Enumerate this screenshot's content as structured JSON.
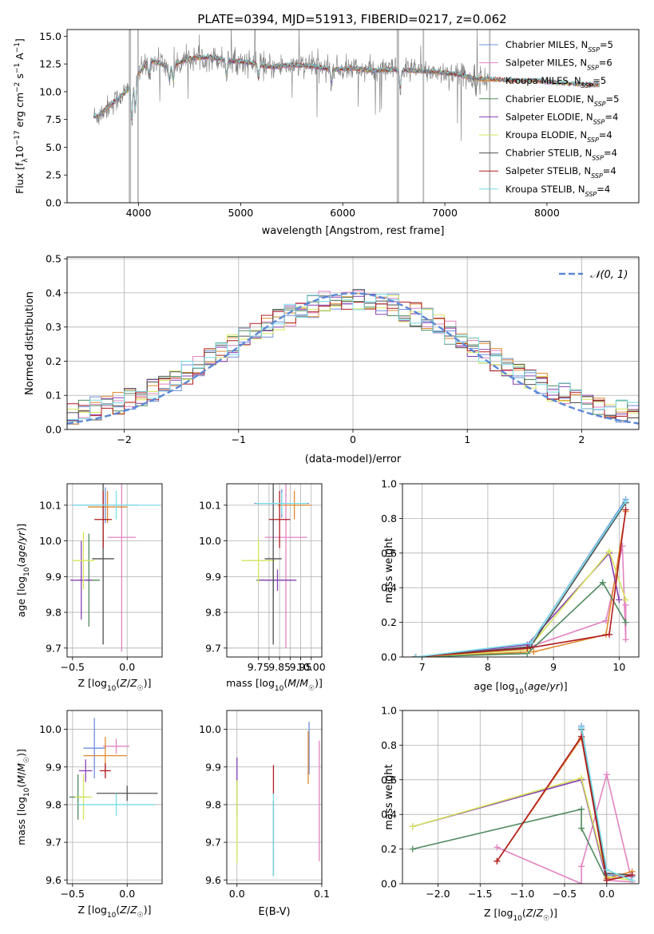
{
  "figure": {
    "title": "PLATE=0394, MJD=51913, FIBERID=0217, z=0.062"
  },
  "model_colors": {
    "Chabrier MILES": "#6f8fdc",
    "Salpeter MILES": "#e283c0",
    "Kroupa MILES": "#e08a2e",
    "Chabrier ELODIE": "#4f8a5f",
    "Salpeter ELODIE": "#8a3fb4",
    "Kroupa ELODIE": "#d6e65a",
    "Chabrier STELIB": "#505050",
    "Salpeter STELIB": "#b01c20",
    "Kroupa STELIB": "#78dce8",
    "data_spectrum": "#7a7a7a",
    "normal_curve": "#5b88d6"
  },
  "chart_data": [
    {
      "id": "spectrum",
      "type": "line",
      "xlabel": "wavelength [Angstrom, rest frame]",
      "ylabel": "Flux [f_λ 10^-17 erg cm^-2 s^-1 A^-1]",
      "xlim": [
        3300,
        8900
      ],
      "ylim": [
        0,
        15.6
      ],
      "xticks": [
        4000,
        5000,
        6000,
        7000,
        8000
      ],
      "yticks": [
        0.0,
        2.5,
        5.0,
        7.5,
        10.0,
        12.5,
        15.0
      ],
      "grid": false,
      "legend_position": "top-right",
      "legend": [
        {
          "label": "Chabrier MILES, N",
          "sub": "SSP",
          "eq": "=5"
        },
        {
          "label": "Salpeter MILES, N",
          "sub": "SSP",
          "eq": "=6"
        },
        {
          "label": "Kroupa MILES, N",
          "sub": "SSP",
          "eq": "=5"
        },
        {
          "label": "Chabrier ELODIE, N",
          "sub": "SSP",
          "eq": "=5"
        },
        {
          "label": "Salpeter ELODIE, N",
          "sub": "SSP",
          "eq": "=4"
        },
        {
          "label": "Kroupa ELODIE, N",
          "sub": "SSP",
          "eq": "=4"
        },
        {
          "label": "Chabrier STELIB, N",
          "sub": "SSP",
          "eq": "=4"
        },
        {
          "label": "Salpeter STELIB, N",
          "sub": "SSP",
          "eq": "=4"
        },
        {
          "label": "Kroupa STELIB, N",
          "sub": "SSP",
          "eq": "=4"
        }
      ],
      "continuum": [
        [
          3600,
          7.8
        ],
        [
          3700,
          8.6
        ],
        [
          3800,
          9.4
        ],
        [
          3900,
          10.2
        ],
        [
          4000,
          11.6
        ],
        [
          4100,
          12.8
        ],
        [
          4200,
          12.6
        ],
        [
          4300,
          12.2
        ],
        [
          4400,
          12.6
        ],
        [
          4500,
          13.0
        ],
        [
          4700,
          13.1
        ],
        [
          4900,
          12.8
        ],
        [
          5100,
          12.6
        ],
        [
          5300,
          12.2
        ],
        [
          5500,
          12.4
        ],
        [
          5700,
          12.3
        ],
        [
          5900,
          12.0
        ],
        [
          6100,
          12.1
        ],
        [
          6300,
          11.9
        ],
        [
          6500,
          12.0
        ],
        [
          6700,
          11.9
        ],
        [
          6900,
          11.8
        ],
        [
          7100,
          11.6
        ],
        [
          7300,
          11.2
        ],
        [
          7500,
          11.1
        ],
        [
          7700,
          11.0
        ],
        [
          7900,
          11.0
        ],
        [
          8100,
          10.8
        ],
        [
          8300,
          10.7
        ],
        [
          8500,
          10.6
        ]
      ],
      "model_range": [
        3560,
        8520
      ],
      "data_range": [
        3560,
        7450
      ]
    },
    {
      "id": "residuals",
      "type": "histogram",
      "xlabel": "(data-model)/error",
      "ylabel": "Normed distribution",
      "xlim": [
        -2.5,
        2.5
      ],
      "ylim": [
        0,
        0.505
      ],
      "xticks": [
        -2,
        -1,
        0,
        1,
        2
      ],
      "yticks": [
        0.0,
        0.1,
        0.2,
        0.3,
        0.4,
        0.5
      ],
      "grid": true,
      "legend_position": "top-right",
      "legend": [
        {
          "label": "𝒩(0, 1)"
        }
      ],
      "normal": {
        "mu": 0,
        "sigma": 1
      },
      "bin_width": 0.1,
      "bin_range": [
        -2.5,
        2.5
      ]
    },
    {
      "id": "age_vs_Z",
      "type": "errorbar",
      "xlabel": "Z [log10(Z/Z☉)]",
      "ylabel": "age [log10(age/yr)]",
      "xlim": [
        -0.55,
        0.32
      ],
      "ylim": [
        9.675,
        10.16
      ],
      "xticks": [
        -0.5,
        0.0
      ],
      "yticks": [
        9.7,
        9.8,
        9.9,
        10.0,
        10.1
      ],
      "grid": true,
      "points": [
        {
          "model": "Chabrier MILES",
          "x": -0.2,
          "xerr": 0.3,
          "y": 10.1,
          "yerr": 0.05
        },
        {
          "model": "Salpeter MILES",
          "x": -0.05,
          "xerr": 0.13,
          "y": 10.01,
          "yerr": 0.32
        },
        {
          "model": "Kroupa MILES",
          "x": -0.18,
          "xerr": 0.18,
          "y": 10.095,
          "yerr": 0.045
        },
        {
          "model": "Chabrier ELODIE",
          "x": -0.35,
          "xerr": 0.1,
          "y": 9.89,
          "yerr": 0.13
        },
        {
          "model": "Salpeter ELODIE",
          "x": -0.42,
          "xerr": 0.1,
          "y": 9.89,
          "yerr": 0.11
        },
        {
          "model": "Kroupa ELODIE",
          "x": -0.4,
          "xerr": 0.1,
          "y": 9.945,
          "yerr": 0.08
        },
        {
          "model": "Chabrier STELIB",
          "x": -0.22,
          "xerr": 0.1,
          "y": 9.95,
          "yerr": 0.24
        },
        {
          "model": "Salpeter STELIB",
          "x": -0.22,
          "xerr": 0.08,
          "y": 10.06,
          "yerr": 0.08
        },
        {
          "model": "Kroupa STELIB",
          "x": -0.1,
          "xerr": 0.4,
          "y": 10.1,
          "yerr": 0.04
        }
      ]
    },
    {
      "id": "age_vs_mass",
      "type": "errorbar",
      "xlabel": "mass [log10(M/M☉)]",
      "ylabel": "",
      "xlim": [
        9.6,
        10.05
      ],
      "ylim": [
        9.675,
        10.16
      ],
      "xticks": [
        9.75,
        9.8,
        9.85,
        9.9,
        9.95,
        10.0
      ],
      "xticklabels": [
        "9.75",
        "",
        "9.85",
        "",
        "9.95",
        "10.00"
      ],
      "yticks": [
        9.7,
        9.8,
        9.9,
        10.0,
        10.1
      ],
      "grid": true,
      "points": [
        {
          "model": "Chabrier MILES",
          "x": 9.86,
          "xerr": 0.13,
          "y": 10.105,
          "yerr": 0.04
        },
        {
          "model": "Salpeter MILES",
          "x": 9.88,
          "xerr": 0.1,
          "y": 10.01,
          "yerr": 0.31
        },
        {
          "model": "Kroupa MILES",
          "x": 9.92,
          "xerr": 0.08,
          "y": 10.1,
          "yerr": 0.04
        },
        {
          "model": "Chabrier ELODIE",
          "x": 9.82,
          "xerr": 0.08,
          "y": 9.89,
          "yerr": 0.05
        },
        {
          "model": "Salpeter ELODIE",
          "x": 9.84,
          "xerr": 0.09,
          "y": 9.89,
          "yerr": 0.03
        },
        {
          "model": "Kroupa ELODIE",
          "x": 9.75,
          "xerr": 0.08,
          "y": 9.945,
          "yerr": 0.06
        },
        {
          "model": "Chabrier STELIB",
          "x": 9.82,
          "xerr": 0.04,
          "y": 9.95,
          "yerr": 0.24
        },
        {
          "model": "Salpeter STELIB",
          "x": 9.85,
          "xerr": 0.05,
          "y": 10.06,
          "yerr": 0.08
        },
        {
          "model": "Kroupa STELIB",
          "x": 9.86,
          "xerr": 0.12,
          "y": 10.105,
          "yerr": 0.03
        }
      ]
    },
    {
      "id": "weight_vs_age",
      "type": "line",
      "xlabel": "age [log10(age/yr)]",
      "ylabel": "mass weight",
      "xlim": [
        6.7,
        10.3
      ],
      "ylim": [
        0,
        1.0
      ],
      "xticks": [
        7,
        8,
        9,
        10
      ],
      "yticks": [
        0.0,
        0.2,
        0.4,
        0.6,
        0.8,
        1.0
      ],
      "grid": true,
      "series": [
        {
          "model": "Chabrier MILES",
          "x": [
            6.9,
            8.6,
            10.1
          ],
          "y": [
            0.0,
            0.05,
            0.91
          ]
        },
        {
          "model": "Salpeter MILES",
          "x": [
            6.9,
            8.5,
            9.8,
            10.05,
            10.1,
            10.1
          ],
          "y": [
            0.0,
            0.04,
            0.21,
            0.64,
            0.1,
            0.3
          ]
        },
        {
          "model": "Kroupa MILES",
          "x": [
            6.9,
            8.7,
            9.8,
            10.1
          ],
          "y": [
            0.0,
            0.03,
            0.13,
            0.84
          ]
        },
        {
          "model": "Chabrier ELODIE",
          "x": [
            6.9,
            8.6,
            9.75,
            10.1
          ],
          "y": [
            0.0,
            0.02,
            0.43,
            0.2
          ]
        },
        {
          "model": "Salpeter ELODIE",
          "x": [
            6.9,
            8.6,
            9.85,
            10.0
          ],
          "y": [
            0.0,
            0.07,
            0.6,
            0.33
          ]
        },
        {
          "model": "Kroupa ELODIE",
          "x": [
            6.9,
            8.6,
            9.85,
            10.1
          ],
          "y": [
            0.0,
            0.04,
            0.61,
            0.33
          ]
        },
        {
          "model": "Chabrier STELIB",
          "x": [
            6.9,
            8.65,
            10.1
          ],
          "y": [
            0.0,
            0.06,
            0.89
          ]
        },
        {
          "model": "Salpeter STELIB",
          "x": [
            6.9,
            8.6,
            9.85,
            10.1
          ],
          "y": [
            0.0,
            0.05,
            0.13,
            0.85
          ]
        },
        {
          "model": "Kroupa STELIB",
          "x": [
            6.9,
            8.65,
            10.1
          ],
          "y": [
            0.0,
            0.08,
            0.9
          ]
        }
      ]
    },
    {
      "id": "mass_vs_Z",
      "type": "errorbar",
      "xlabel": "Z [log10(Z/Z☉)]",
      "ylabel": "mass [log10(M/M☉)]",
      "xlim": [
        -0.55,
        0.32
      ],
      "ylim": [
        9.59,
        10.05
      ],
      "xticks": [
        -0.5,
        0.0
      ],
      "yticks": [
        9.6,
        9.7,
        9.8,
        9.9,
        10.0
      ],
      "grid": true,
      "points": [
        {
          "model": "Chabrier MILES",
          "x": -0.3,
          "xerr": 0.1,
          "y": 9.95,
          "yerr": 0.08
        },
        {
          "model": "Salpeter MILES",
          "x": -0.1,
          "xerr": 0.12,
          "y": 9.955,
          "yerr": 0.02
        },
        {
          "model": "Kroupa MILES",
          "x": -0.2,
          "xerr": 0.2,
          "y": 9.93,
          "yerr": 0.05
        },
        {
          "model": "Chabrier ELODIE",
          "x": -0.45,
          "xerr": 0.08,
          "y": 9.82,
          "yerr": 0.06
        },
        {
          "model": "Salpeter ELODIE",
          "x": -0.38,
          "xerr": 0.06,
          "y": 9.89,
          "yerr": 0.03
        },
        {
          "model": "Kroupa ELODIE",
          "x": -0.4,
          "xerr": 0.08,
          "y": 9.82,
          "yerr": 0.06
        },
        {
          "model": "Chabrier STELIB",
          "x": 0.0,
          "xerr": 0.28,
          "y": 9.83,
          "yerr": 0.02
        },
        {
          "model": "Salpeter STELIB",
          "x": -0.2,
          "xerr": 0.05,
          "y": 9.89,
          "yerr": 0.02
        },
        {
          "model": "Kroupa STELIB",
          "x": -0.1,
          "xerr": 0.35,
          "y": 9.8,
          "yerr": 0.03
        }
      ]
    },
    {
      "id": "mass_vs_EBV",
      "type": "errorbar",
      "xlabel": "E(B-V)",
      "ylabel": "",
      "xlim": [
        -0.012,
        0.1
      ],
      "ylim": [
        9.59,
        10.05
      ],
      "xticks": [
        0.0,
        0.1
      ],
      "yticks": [
        9.6,
        9.7,
        9.8,
        9.9,
        10.0
      ],
      "grid": true,
      "points": [
        {
          "model": "Chabrier MILES",
          "x": 0.085,
          "xerr": 0.0,
          "y": 9.95,
          "yerr": 0.07
        },
        {
          "model": "Salpeter MILES",
          "x": 0.097,
          "xerr": 0.0,
          "y": 9.81,
          "yerr": 0.16
        },
        {
          "model": "Kroupa MILES",
          "x": 0.084,
          "xerr": 0.0,
          "y": 9.925,
          "yerr": 0.07
        },
        {
          "model": "Chabrier ELODIE",
          "x": 0.0,
          "xerr": 0.0,
          "y": 9.82,
          "yerr": 0.05
        },
        {
          "model": "Salpeter ELODIE",
          "x": 0.0,
          "xerr": 0.0,
          "y": 9.895,
          "yerr": 0.03
        },
        {
          "model": "Kroupa ELODIE",
          "x": 0.0,
          "xerr": 0.0,
          "y": 9.755,
          "yerr": 0.11
        },
        {
          "model": "Chabrier STELIB",
          "x": 0.043,
          "xerr": 0.0,
          "y": 9.71,
          "yerr": 0.1
        },
        {
          "model": "Salpeter STELIB",
          "x": 0.043,
          "xerr": 0.0,
          "y": 9.865,
          "yerr": 0.04
        },
        {
          "model": "Kroupa STELIB",
          "x": 0.043,
          "xerr": 0.0,
          "y": 9.72,
          "yerr": 0.11
        }
      ]
    },
    {
      "id": "weight_vs_Z",
      "type": "line",
      "xlabel": "Z [log10(Z/Z☉)]",
      "ylabel": "mass weight",
      "xlim": [
        -2.42,
        0.38
      ],
      "ylim": [
        0,
        1.0
      ],
      "xticks": [
        -2.0,
        -1.5,
        -1.0,
        -0.5,
        0.0
      ],
      "yticks": [
        0.0,
        0.2,
        0.4,
        0.6,
        0.8,
        1.0
      ],
      "grid": true,
      "series": [
        {
          "model": "Chabrier MILES",
          "x": [
            -0.3,
            0.0,
            0.3
          ],
          "y": [
            0.91,
            0.05,
            0.04
          ]
        },
        {
          "model": "Salpeter MILES",
          "x": [
            -1.3,
            -0.3,
            -0.3,
            0.0,
            0.3,
            0.0
          ],
          "y": [
            0.21,
            0.0,
            0.1,
            0.63,
            0.01,
            0.02
          ]
        },
        {
          "model": "Kroupa MILES",
          "x": [
            -1.3,
            -0.3,
            0.0,
            0.3
          ],
          "y": [
            0.13,
            0.84,
            0.03,
            0.07
          ]
        },
        {
          "model": "Chabrier ELODIE",
          "x": [
            -2.3,
            -0.3,
            -0.3,
            0.0
          ],
          "y": [
            0.2,
            0.43,
            0.32,
            0.02
          ]
        },
        {
          "model": "Salpeter ELODIE",
          "x": [
            -2.3,
            -0.3,
            0.0,
            0.3
          ],
          "y": [
            0.33,
            0.6,
            0.02,
            0.05
          ]
        },
        {
          "model": "Kroupa ELODIE",
          "x": [
            -2.3,
            -0.3,
            0.0,
            0.3
          ],
          "y": [
            0.33,
            0.61,
            0.04,
            0.02
          ]
        },
        {
          "model": "Chabrier STELIB",
          "x": [
            -0.3,
            0.0,
            0.3
          ],
          "y": [
            0.89,
            0.06,
            0.05
          ]
        },
        {
          "model": "Salpeter STELIB",
          "x": [
            -1.3,
            -0.3,
            0.0,
            0.3
          ],
          "y": [
            0.13,
            0.85,
            0.02,
            0.05
          ]
        },
        {
          "model": "Kroupa STELIB",
          "x": [
            -0.3,
            0.0,
            0.3
          ],
          "y": [
            0.9,
            0.08,
            0.02
          ]
        }
      ]
    }
  ]
}
